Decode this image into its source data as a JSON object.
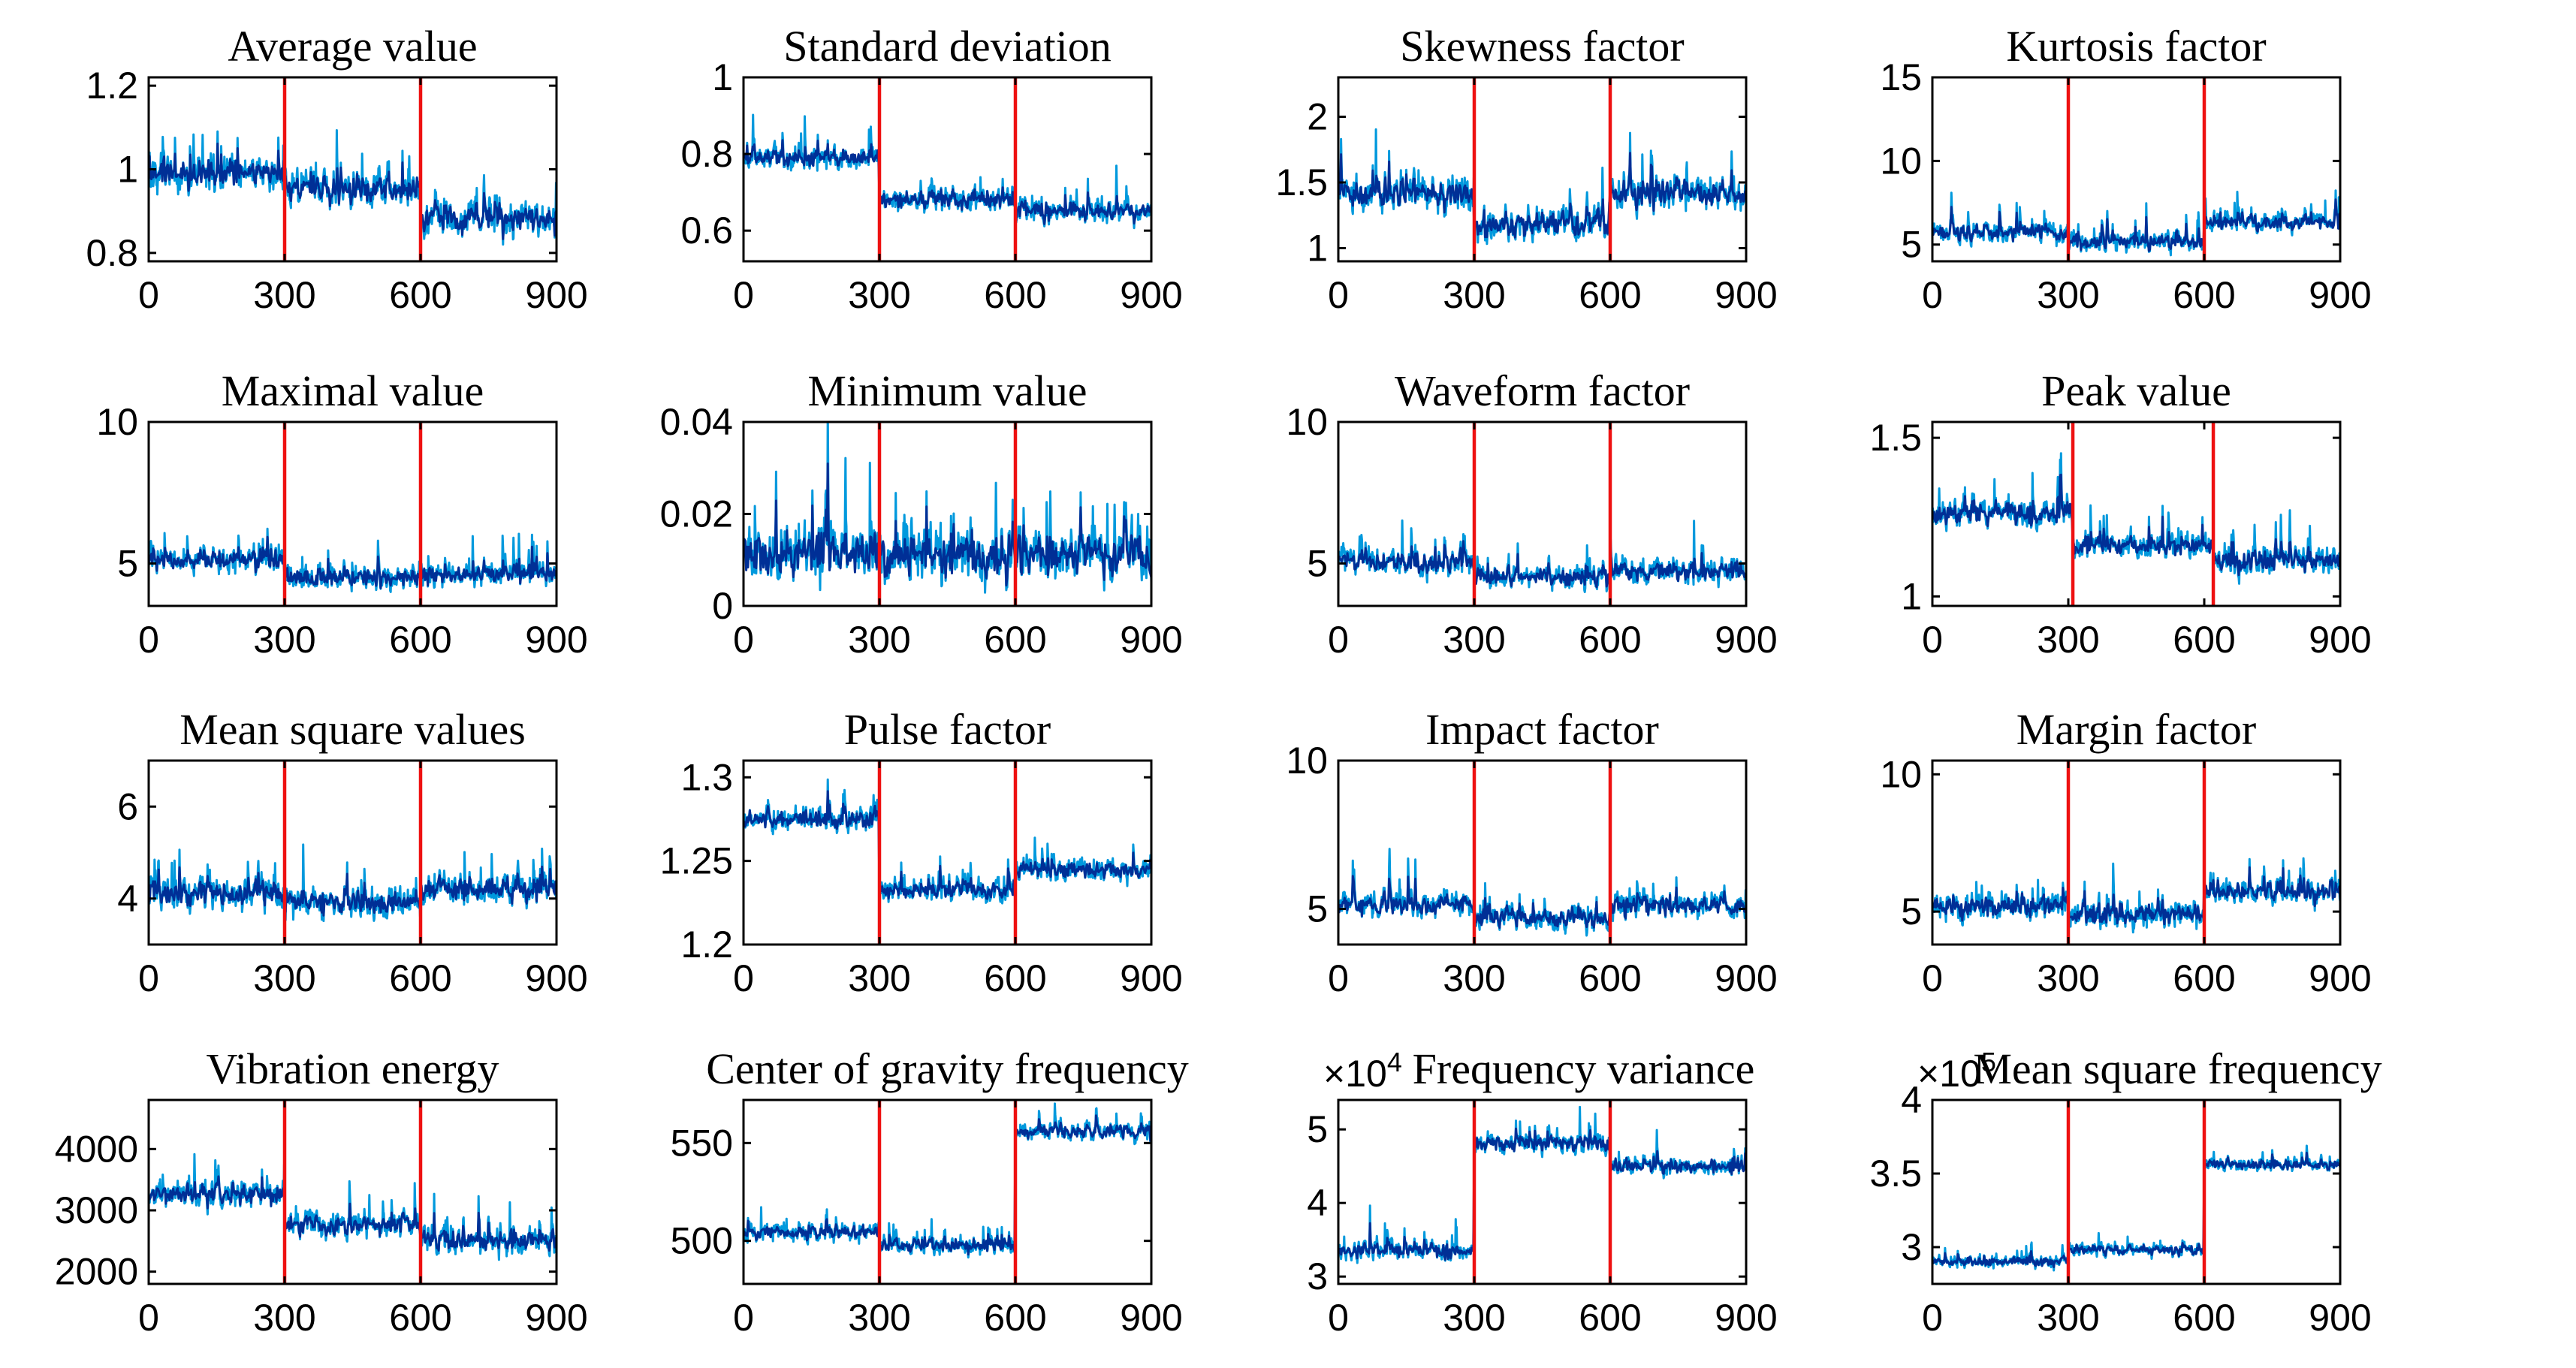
{
  "figure": {
    "colors": {
      "signal_light": "#0099dd",
      "signal_dark": "#002f96",
      "divider": "#ee1111",
      "axis": "#000000"
    }
  },
  "chart_data": [
    {
      "type": "line",
      "title": "Average value",
      "xlim": [
        0,
        900
      ],
      "xticks": [
        "0",
        "300",
        "600",
        "900"
      ],
      "ylim": [
        0.78,
        1.22
      ],
      "yticks": [
        0.8,
        1.0,
        1.2
      ],
      "ytick_labels": [
        "0.8",
        "1",
        "1.2"
      ],
      "dividers": [
        300,
        600
      ],
      "segment_means": [
        0.99,
        0.95,
        0.88
      ],
      "noise": 0.055,
      "multiplier": ""
    },
    {
      "type": "line",
      "title": "Standard deviation",
      "xlim": [
        0,
        900
      ],
      "xticks": [
        "0",
        "300",
        "600",
        "900"
      ],
      "ylim": [
        0.52,
        1.0
      ],
      "yticks": [
        0.6,
        0.8,
        1.0
      ],
      "ytick_labels": [
        "0.6",
        "0.8",
        "1"
      ],
      "dividers": [
        300,
        600
      ],
      "segment_means": [
        0.79,
        0.68,
        0.65
      ],
      "noise": 0.04,
      "multiplier": ""
    },
    {
      "type": "line",
      "title": "Skewness factor",
      "xlim": [
        0,
        900
      ],
      "xticks": [
        "0",
        "300",
        "600",
        "900"
      ],
      "ylim": [
        0.9,
        2.3
      ],
      "yticks": [
        1.0,
        1.5,
        2.0
      ],
      "ytick_labels": [
        "1",
        "1.5",
        "2"
      ],
      "dividers": [
        300,
        600
      ],
      "segment_means": [
        1.42,
        1.18,
        1.42
      ],
      "noise": 0.17,
      "multiplier": ""
    },
    {
      "type": "line",
      "title": "Kurtosis factor",
      "xlim": [
        0,
        900
      ],
      "xticks": [
        "0",
        "300",
        "600",
        "900"
      ],
      "ylim": [
        4.0,
        15.0
      ],
      "yticks": [
        5,
        10,
        15
      ],
      "ytick_labels": [
        "5",
        "10",
        "15"
      ],
      "dividers": [
        300,
        600
      ],
      "segment_means": [
        5.7,
        5.2,
        6.3
      ],
      "noise": 0.8,
      "multiplier": ""
    },
    {
      "type": "line",
      "title": "Maximal value",
      "xlim": [
        0,
        900
      ],
      "xticks": [
        "0",
        "300",
        "600",
        "900"
      ],
      "ylim": [
        3.5,
        10.0
      ],
      "yticks": [
        5,
        10
      ],
      "ytick_labels": [
        "5",
        "10"
      ],
      "dividers": [
        300,
        600
      ],
      "segment_means": [
        5.1,
        4.5,
        4.6
      ],
      "noise": 0.55,
      "multiplier": ""
    },
    {
      "type": "line",
      "title": "Minimum value",
      "xlim": [
        0,
        900
      ],
      "xticks": [
        "0",
        "300",
        "600",
        "900"
      ],
      "ylim": [
        0.0,
        0.04
      ],
      "yticks": [
        0.0,
        0.02,
        0.04
      ],
      "ytick_labels": [
        "0",
        "0.02",
        "0.04"
      ],
      "dividers": [
        300,
        600
      ],
      "segment_means": [
        0.011,
        0.011,
        0.011
      ],
      "noise": 0.008,
      "multiplier": ""
    },
    {
      "type": "line",
      "title": "Waveform factor",
      "xlim": [
        0,
        900
      ],
      "xticks": [
        "0",
        "300",
        "600",
        "900"
      ],
      "ylim": [
        3.5,
        10.0
      ],
      "yticks": [
        5,
        10
      ],
      "ytick_labels": [
        "5",
        "10"
      ],
      "dividers": [
        300,
        600
      ],
      "segment_means": [
        5.0,
        4.5,
        4.7
      ],
      "noise": 0.55,
      "multiplier": ""
    },
    {
      "type": "line",
      "title": "Peak value",
      "xlim": [
        0,
        900
      ],
      "xticks": [
        "0",
        "300",
        "600",
        "900"
      ],
      "ylim": [
        0.97,
        1.55
      ],
      "yticks": [
        1.0,
        1.5
      ],
      "ytick_labels": [
        "1",
        "1.5"
      ],
      "dividers": [
        310,
        620
      ],
      "segment_means": [
        1.26,
        1.16,
        1.11
      ],
      "noise": 0.055,
      "multiplier": ""
    },
    {
      "type": "line",
      "title": "Mean square values",
      "xlim": [
        0,
        900
      ],
      "xticks": [
        "0",
        "300",
        "600",
        "900"
      ],
      "ylim": [
        3.0,
        7.0
      ],
      "yticks": [
        4,
        6
      ],
      "ytick_labels": [
        "4",
        "6"
      ],
      "dividers": [
        300,
        600
      ],
      "segment_means": [
        4.1,
        3.9,
        4.2
      ],
      "noise": 0.45,
      "multiplier": ""
    },
    {
      "type": "line",
      "title": "Pulse factor",
      "xlim": [
        0,
        900
      ],
      "xticks": [
        "0",
        "300",
        "600",
        "900"
      ],
      "ylim": [
        1.2,
        1.31
      ],
      "yticks": [
        1.2,
        1.25,
        1.3
      ],
      "ytick_labels": [
        "1.2",
        "1.25",
        "1.3"
      ],
      "dividers": [
        300,
        600
      ],
      "segment_means": [
        1.275,
        1.232,
        1.245
      ],
      "noise": 0.009,
      "multiplier": ""
    },
    {
      "type": "line",
      "title": "Impact factor",
      "xlim": [
        0,
        900
      ],
      "xticks": [
        "0",
        "300",
        "600",
        "900"
      ],
      "ylim": [
        3.8,
        10.0
      ],
      "yticks": [
        5,
        10
      ],
      "ytick_labels": [
        "5",
        "10"
      ],
      "dividers": [
        300,
        600
      ],
      "segment_means": [
        5.1,
        4.7,
        5.1
      ],
      "noise": 0.55,
      "multiplier": ""
    },
    {
      "type": "line",
      "title": "Margin factor",
      "xlim": [
        0,
        900
      ],
      "xticks": [
        "0",
        "300",
        "600",
        "900"
      ],
      "ylim": [
        3.8,
        10.5
      ],
      "yticks": [
        5,
        10
      ],
      "ytick_labels": [
        "5",
        "10"
      ],
      "dividers": [
        300,
        600
      ],
      "segment_means": [
        5.2,
        4.9,
        5.7
      ],
      "noise": 0.65,
      "multiplier": ""
    },
    {
      "type": "line",
      "title": "Vibration energy",
      "xlim": [
        0,
        900
      ],
      "xticks": [
        "0",
        "300",
        "600",
        "900"
      ],
      "ylim": [
        1800,
        4800
      ],
      "yticks": [
        2000,
        3000,
        4000
      ],
      "ytick_labels": [
        "2000",
        "3000",
        "4000"
      ],
      "dividers": [
        300,
        600
      ],
      "segment_means": [
        3250,
        2750,
        2500
      ],
      "noise": 280,
      "multiplier": ""
    },
    {
      "type": "line",
      "title": "Center of gravity frequency",
      "xlim": [
        0,
        900
      ],
      "xticks": [
        "0",
        "300",
        "600",
        "900"
      ],
      "ylim": [
        478,
        572
      ],
      "yticks": [
        500,
        550
      ],
      "ytick_labels": [
        "500",
        "550"
      ],
      "dividers": [
        300,
        600
      ],
      "segment_means": [
        504,
        498,
        556
      ],
      "noise": 6,
      "multiplier": ""
    },
    {
      "type": "line",
      "title": "Frequency variance",
      "xlim": [
        0,
        900
      ],
      "xticks": [
        "0",
        "300",
        "600",
        "900"
      ],
      "ylim": [
        2.9,
        5.4
      ],
      "yticks": [
        3,
        4,
        5
      ],
      "ytick_labels": [
        "3",
        "4",
        "5"
      ],
      "dividers": [
        300,
        600
      ],
      "segment_means": [
        3.35,
        4.8,
        4.5
      ],
      "noise": 0.17,
      "multiplier": "×10",
      "multiplier_exp": "4"
    },
    {
      "type": "line",
      "title": "Mean square frequency",
      "xlim": [
        0,
        900
      ],
      "xticks": [
        "0",
        "300",
        "600",
        "900"
      ],
      "ylim": [
        2.75,
        4.0
      ],
      "yticks": [
        3.0,
        3.5,
        4.0
      ],
      "ytick_labels": [
        "3",
        "3.5",
        "4"
      ],
      "dividers": [
        300,
        600
      ],
      "segment_means": [
        2.9,
        2.98,
        3.56
      ],
      "noise": 0.055,
      "multiplier": "×10",
      "multiplier_exp": "5"
    }
  ]
}
